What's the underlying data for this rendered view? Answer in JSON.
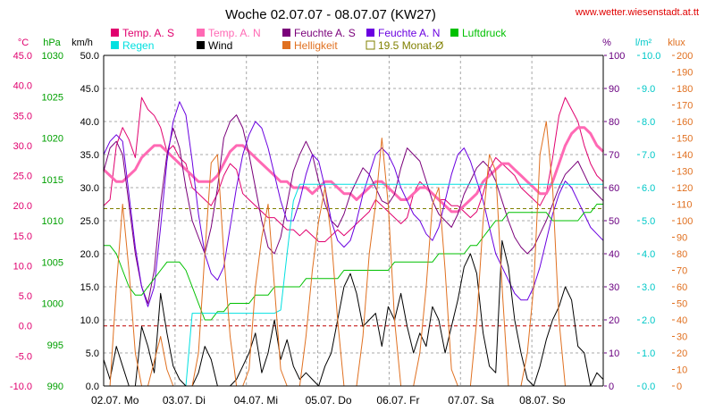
{
  "page": {
    "title": "Woche 02.07.07 - 08.07.07 (KW27)",
    "url_text": "www.wetter.wiesenstadt.at.tt"
  },
  "chart_data": {
    "type": "line",
    "title": "Woche 02.07.07 - 08.07.07 (KW27)",
    "x_labels": [
      "02.07. Mo",
      "03.07. Di",
      "04.07. Mi",
      "05.07. Do",
      "06.07. Fr",
      "07.07. Sa",
      "08.07. So"
    ],
    "grid": true,
    "legend_position": "top",
    "axes": {
      "temp": {
        "unit": "°C",
        "min": -10,
        "max": 45,
        "step": 5,
        "color": "#e0006e",
        "ticks": [
          "45.0",
          "40.0",
          "35.0",
          "30.0",
          "25.0",
          "20.0",
          "15.0",
          "10.0",
          "5.0",
          "0.0",
          "-5.0",
          "-10.0"
        ]
      },
      "pressure": {
        "unit": "hPa",
        "min": 990,
        "max": 1030,
        "step": 5,
        "color": "#00a000",
        "ticks": [
          "1030",
          "1025",
          "1020",
          "1015",
          "1010",
          "1005",
          "1000",
          "995",
          "990"
        ]
      },
      "wind": {
        "unit": "km/h",
        "min": 0,
        "max": 50,
        "step": 5,
        "color": "#000000",
        "ticks": [
          "50.0",
          "45.0",
          "40.0",
          "35.0",
          "30.0",
          "25.0",
          "20.0",
          "15.0",
          "10.0",
          "5.0",
          "0.0"
        ]
      },
      "humidity": {
        "unit": "%",
        "min": 0,
        "max": 100,
        "step": 10,
        "color": "#6a0080",
        "ticks": [
          "100",
          "90",
          "80",
          "70",
          "60",
          "50",
          "40",
          "30",
          "20",
          "10",
          "0"
        ]
      },
      "rain": {
        "unit": "l/m²",
        "min": 0,
        "max": 10,
        "step": 1,
        "color": "#00c8c8",
        "ticks": [
          "10.0",
          "9.0",
          "8.0",
          "7.0",
          "6.0",
          "5.0",
          "4.0",
          "3.0",
          "2.0",
          "1.0",
          "0.0"
        ]
      },
      "light": {
        "unit": "klux",
        "min": 0,
        "max": 200,
        "step": 10,
        "color": "#e07020",
        "ticks": [
          "200",
          "190",
          "180",
          "170",
          "160",
          "150",
          "140",
          "130",
          "120",
          "110",
          "100",
          "90",
          "80",
          "70",
          "60",
          "50",
          "40",
          "30",
          "20",
          "10",
          "0"
        ]
      }
    },
    "legend": [
      {
        "label": "Temp. A. S",
        "color": "#e0006e",
        "style": "filled"
      },
      {
        "label": "Temp. A. N",
        "color": "#ff69b4",
        "style": "filled"
      },
      {
        "label": "Feuchte A. S",
        "color": "#7a007a",
        "style": "filled"
      },
      {
        "label": "Feuchte A. N",
        "color": "#6a00e0",
        "style": "filled"
      },
      {
        "label": "Luftdruck",
        "color": "#00c000",
        "style": "filled"
      },
      {
        "label": "Regen",
        "color": "#00e0e0",
        "style": "filled"
      },
      {
        "label": "Wind",
        "color": "#000000",
        "style": "filled"
      },
      {
        "label": "Helligkeit",
        "color": "#e07020",
        "style": "filled"
      },
      {
        "label": "19.5 Monat-Ø",
        "color": "#808000",
        "style": "outline"
      }
    ],
    "reference_lines": [
      {
        "axis": "temp",
        "value": 19.5,
        "color": "#808000",
        "style": "dashed"
      },
      {
        "axis": "temp",
        "value": 0,
        "color": "#c00000",
        "style": "dashed"
      }
    ],
    "series": [
      {
        "name": "Temp. A. S",
        "axis": "temp",
        "color": "#e0006e",
        "width": 1,
        "values": [
          20,
          21,
          30,
          33,
          31,
          28,
          38,
          36,
          35,
          33,
          29,
          30,
          28,
          27,
          23,
          22,
          21,
          20,
          22,
          25,
          27,
          26,
          22,
          21,
          20,
          19,
          18,
          18,
          17,
          16,
          16,
          15,
          16,
          15,
          14,
          14,
          15,
          16,
          15,
          16,
          17,
          18,
          19,
          21,
          20,
          19,
          18,
          17,
          18,
          22,
          24,
          23,
          22,
          21,
          21,
          20,
          20,
          19,
          18,
          19,
          22,
          26,
          28,
          27,
          26,
          25,
          23,
          22,
          21,
          20,
          22,
          28,
          35,
          38,
          36,
          34,
          30,
          27,
          25,
          24
        ]
      },
      {
        "name": "Temp. A. N",
        "axis": "temp",
        "color": "#ff69b4",
        "width": 3,
        "values": [
          26,
          25,
          24,
          24,
          25,
          26,
          28,
          29,
          30,
          30,
          29,
          28,
          27,
          26,
          25,
          24,
          24,
          24,
          25,
          27,
          29,
          30,
          30,
          29,
          28,
          27,
          26,
          25,
          24,
          24,
          23,
          23,
          23,
          22,
          23,
          24,
          24,
          23,
          22,
          22,
          21,
          22,
          23,
          24,
          24,
          23,
          22,
          21,
          21,
          22,
          23,
          23,
          22,
          21,
          20,
          19,
          19,
          20,
          21,
          22,
          24,
          25,
          26,
          27,
          27,
          26,
          25,
          24,
          23,
          22,
          22,
          24,
          27,
          30,
          32,
          33,
          33,
          32,
          30,
          29
        ]
      },
      {
        "name": "Feuchte A. S",
        "axis": "humidity",
        "color": "#7a007a",
        "width": 1,
        "values": [
          65,
          72,
          74,
          70,
          55,
          40,
          30,
          25,
          35,
          55,
          70,
          78,
          72,
          60,
          50,
          45,
          40,
          48,
          60,
          75,
          80,
          82,
          78,
          70,
          60,
          50,
          42,
          40,
          45,
          55,
          65,
          70,
          74,
          70,
          62,
          55,
          50,
          48,
          52,
          58,
          62,
          66,
          64,
          60,
          56,
          55,
          58,
          66,
          72,
          70,
          68,
          62,
          56,
          52,
          50,
          48,
          52,
          58,
          62,
          66,
          68,
          66,
          62,
          56,
          50,
          45,
          42,
          40,
          42,
          46,
          50,
          55,
          60,
          64,
          66,
          68,
          64,
          60,
          58,
          56
        ]
      },
      {
        "name": "Feuchte A. N",
        "axis": "humidity",
        "color": "#6a00e0",
        "width": 1,
        "values": [
          70,
          74,
          76,
          74,
          58,
          42,
          30,
          24,
          30,
          48,
          68,
          80,
          86,
          82,
          68,
          52,
          40,
          34,
          32,
          36,
          48,
          60,
          70,
          76,
          80,
          78,
          72,
          64,
          56,
          50,
          50,
          56,
          64,
          70,
          68,
          60,
          50,
          44,
          42,
          44,
          50,
          58,
          64,
          70,
          72,
          70,
          66,
          60,
          56,
          52,
          50,
          46,
          44,
          48,
          56,
          64,
          70,
          72,
          68,
          62,
          56,
          48,
          40,
          36,
          32,
          28,
          26,
          26,
          30,
          36,
          44,
          52,
          58,
          62,
          60,
          56,
          52,
          48,
          46,
          44
        ]
      },
      {
        "name": "Luftdruck",
        "axis": "pressure",
        "color": "#00c000",
        "width": 1,
        "values": [
          1007,
          1007,
          1006,
          1004,
          1002,
          1001,
          1001,
          1002,
          1003,
          1004,
          1005,
          1005,
          1005,
          1004,
          1002,
          1000,
          998,
          998,
          999,
          999,
          1000,
          1000,
          1000,
          1000,
          1001,
          1001,
          1001,
          1002,
          1002,
          1002,
          1002,
          1002,
          1003,
          1003,
          1003,
          1003,
          1003,
          1003,
          1004,
          1004,
          1004,
          1004,
          1004,
          1004,
          1004,
          1004,
          1005,
          1005,
          1005,
          1005,
          1005,
          1005,
          1005,
          1006,
          1006,
          1006,
          1006,
          1006,
          1007,
          1007,
          1008,
          1009,
          1010,
          1010,
          1011,
          1011,
          1011,
          1011,
          1011,
          1011,
          1011,
          1010,
          1010,
          1010,
          1010,
          1010,
          1011,
          1011,
          1012,
          1012
        ]
      },
      {
        "name": "Regen",
        "axis": "rain",
        "color": "#00e0e0",
        "width": 1,
        "values": [
          0,
          0,
          0,
          0,
          0,
          0,
          0,
          0,
          0,
          0,
          0,
          0,
          0,
          0,
          2.2,
          2.2,
          2.2,
          2.2,
          2.2,
          2.2,
          2.2,
          2.2,
          2.2,
          2.2,
          2.2,
          2.2,
          2.2,
          2.2,
          2.3,
          4.0,
          5.6,
          6.1,
          6.1,
          6.1,
          6.1,
          6.1,
          6.1,
          6.1,
          6.1,
          6.1,
          6.1,
          6.1,
          6.1,
          6.1,
          6.1,
          6.1,
          6.1,
          6.1,
          6.1,
          6.1,
          6.1,
          6.1,
          6.1,
          6.1,
          6.1,
          6.1,
          6.1,
          6.1,
          6.1,
          6.1,
          6.1,
          6.1,
          6.1,
          6.1,
          6.1,
          6.1,
          6.1,
          6.1,
          6.1,
          6.1,
          6.1,
          6.1,
          6.1,
          6.1,
          6.1,
          6.1,
          6.1,
          6.1,
          6.1,
          6.1
        ]
      },
      {
        "name": "Wind",
        "axis": "wind",
        "color": "#000000",
        "width": 1,
        "values": [
          4,
          1,
          6,
          3,
          0,
          0,
          9,
          6,
          2,
          14,
          8,
          3,
          1,
          0,
          0,
          2,
          6,
          4,
          0,
          0,
          0,
          1,
          3,
          5,
          8,
          2,
          5,
          10,
          4,
          7,
          3,
          1,
          2,
          1,
          0,
          3,
          5,
          10,
          15,
          17,
          14,
          9,
          10,
          11,
          6,
          12,
          10,
          14,
          9,
          5,
          8,
          6,
          12,
          10,
          5,
          9,
          13,
          18,
          20,
          17,
          8,
          3,
          2,
          22,
          18,
          10,
          5,
          1,
          0,
          3,
          7,
          10,
          12,
          15,
          13,
          6,
          5,
          0,
          2,
          1
        ]
      },
      {
        "name": "Helligkeit",
        "axis": "light",
        "color": "#e07020",
        "width": 1,
        "values": [
          0,
          0,
          60,
          110,
          70,
          20,
          0,
          0,
          15,
          30,
          10,
          0,
          0,
          0,
          0,
          20,
          80,
          135,
          140,
          80,
          30,
          0,
          0,
          10,
          60,
          90,
          110,
          60,
          10,
          0,
          0,
          0,
          30,
          70,
          100,
          120,
          90,
          40,
          0,
          0,
          0,
          30,
          80,
          110,
          150,
          110,
          40,
          0,
          0,
          0,
          20,
          60,
          110,
          120,
          70,
          10,
          0,
          0,
          0,
          40,
          100,
          140,
          130,
          60,
          0,
          0,
          0,
          20,
          60,
          140,
          160,
          120,
          40,
          0,
          0,
          0,
          0,
          0,
          0,
          0
        ]
      },
      {
        "name": "19.5 Monat-Ø",
        "axis": "temp",
        "color": "#808000",
        "width": 1,
        "constant": 19.5
      }
    ]
  }
}
